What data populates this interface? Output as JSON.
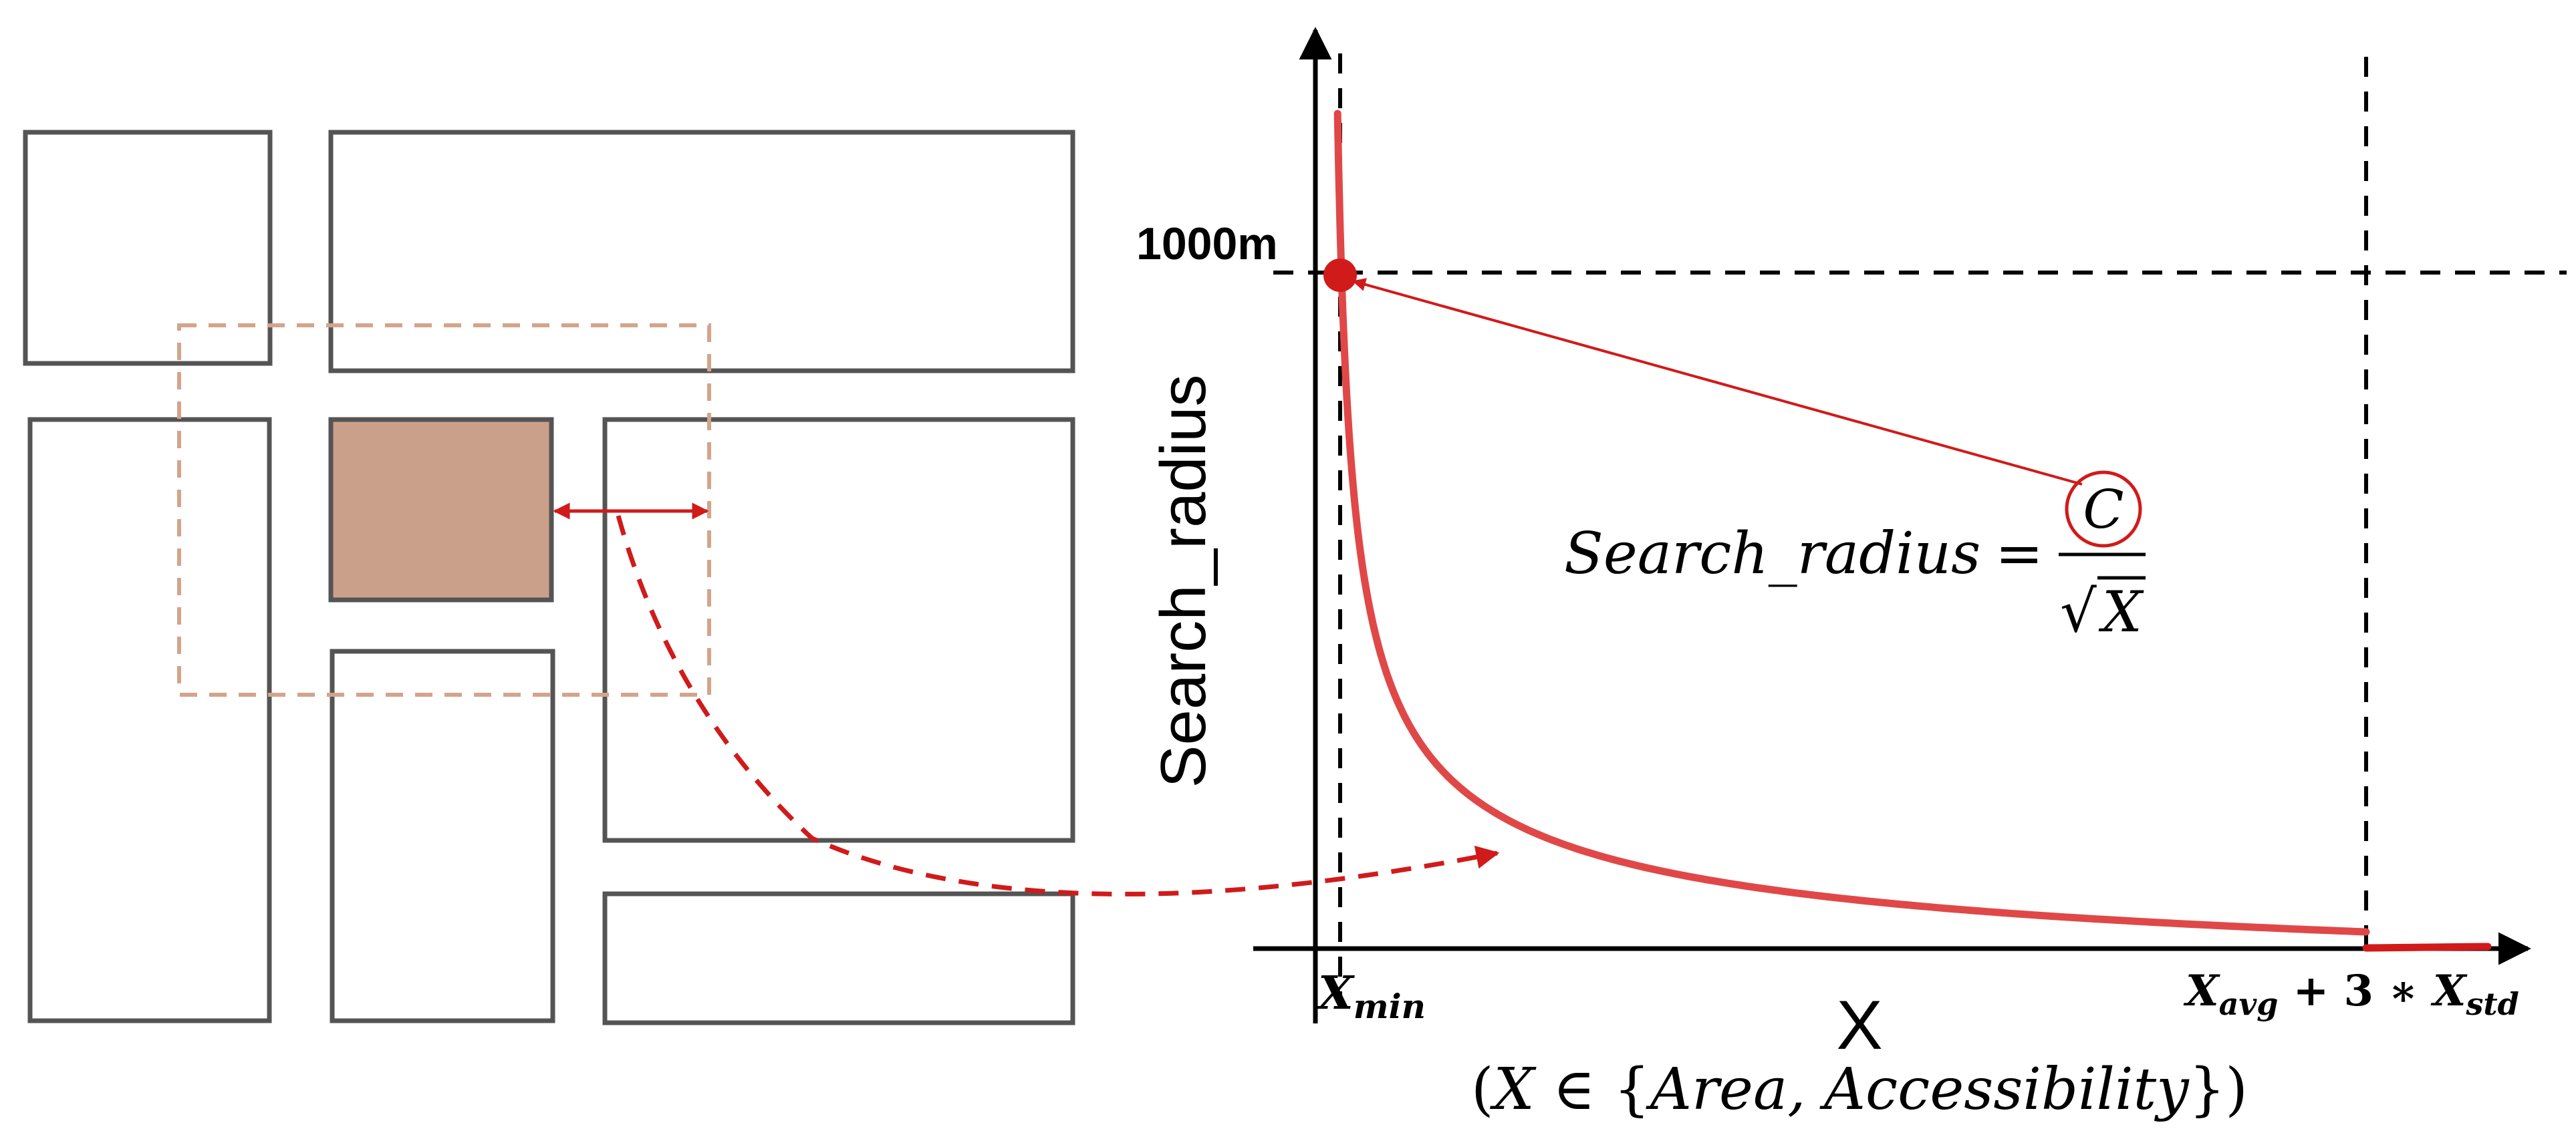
{
  "left_panel": {
    "blocks": [
      "block-a",
      "block-b",
      "block-c",
      "block-selected",
      "block-d",
      "block-e",
      "block-f",
      "block-g"
    ]
  },
  "chart": {
    "y_axis_label": "Search_radius",
    "x_axis_label": "X",
    "y_tick_label": "1000m",
    "x_min_label": {
      "base": "X",
      "sub": "min"
    },
    "x_max_label": {
      "base1": "X",
      "sub1": "avg",
      "mid": " + 3 ∗ ",
      "base2": "X",
      "sub2": "std"
    },
    "domain_note": {
      "pre": "(",
      "var": "X",
      "rel": " ∈ {",
      "items": "Area, Accessibility",
      "post": "})"
    },
    "formula": {
      "lhs": "Search_radius",
      "eq": "=",
      "numerator": "C",
      "denominator": "X",
      "radical": "√"
    },
    "colors": {
      "curve": "#e04848",
      "annotation": "#d11a1a",
      "selected_block": "#cba08a",
      "buffer": "#d3a48c"
    }
  }
}
